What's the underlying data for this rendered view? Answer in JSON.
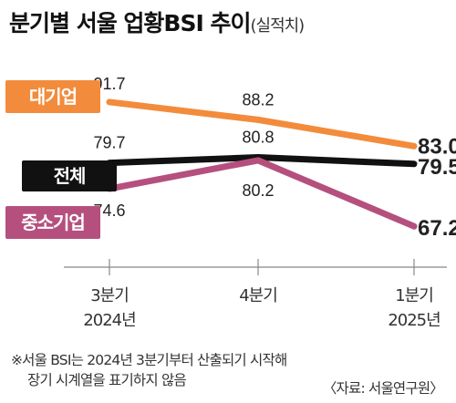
{
  "chart_data": {
    "type": "line",
    "title": "분기별 서울 업황BSI 추이",
    "subtitle": "(실적치)",
    "categories": [
      {
        "quarter": "3분기",
        "year": "2024년"
      },
      {
        "quarter": "4분기",
        "year": ""
      },
      {
        "quarter": "1분기",
        "year": "2025년"
      }
    ],
    "series": [
      {
        "name": "대기업",
        "values": [
          91.7,
          88.2,
          83.0
        ],
        "labels": [
          "91.7",
          "88.2",
          "83.0"
        ],
        "color": "#f28c3c"
      },
      {
        "name": "전체",
        "values": [
          79.7,
          80.8,
          79.5
        ],
        "labels": [
          "79.7",
          "80.8",
          "79.5"
        ],
        "color": "#111111"
      },
      {
        "name": "중소기업",
        "values": [
          74.6,
          80.2,
          67.2
        ],
        "labels": [
          "74.6",
          "80.2",
          "67.2"
        ],
        "color": "#b5507e"
      }
    ],
    "ylim": [
      64,
      96
    ],
    "grid": false
  },
  "footnote": {
    "line1": "※서울 BSI는 2024년 3분기부터 산출되기 시작해",
    "line2": "장기 시계열을 표기하지 않음"
  },
  "source": "〈자료: 서울연구원〉"
}
